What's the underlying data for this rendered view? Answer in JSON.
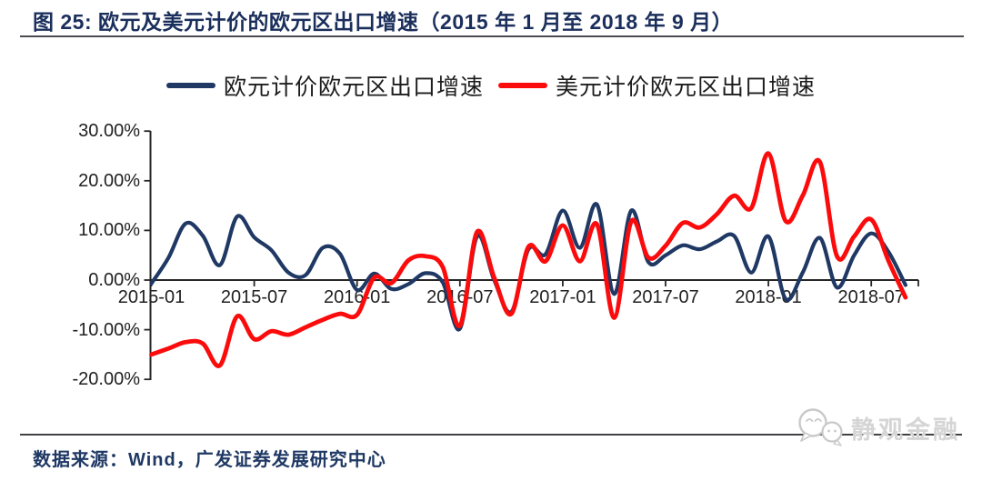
{
  "title": "图 25:  欧元及美元计价的欧元区出口增速（2015 年 1 月至 2018 年 9 月）",
  "source": "数据来源：Wind，广发证券发展研究中心",
  "watermark": "静观金融",
  "colors": {
    "eur_line": "#1F3864",
    "usd_line": "#FB0B0B",
    "title_text": "#1B2F5C",
    "axis": "#262626",
    "tick_label": "#212121",
    "divider": "#4C4C52",
    "watermark_gray": "#D5D5D5"
  },
  "legend": [
    {
      "label": "欧元计价欧元区出口增速",
      "color": "#1F3864"
    },
    {
      "label": "美元计价欧元区出口增速",
      "color": "#FB0B0B"
    }
  ],
  "chart_data": {
    "type": "line",
    "smoothing": true,
    "grid": false,
    "legend_position": "top",
    "ylim": [
      -20,
      30
    ],
    "y_tick_values": [
      30,
      20,
      10,
      0,
      -10,
      -20
    ],
    "y_tick_labels": [
      "30.00%",
      "20.00%",
      "10.00%",
      "0.00%",
      "-10.00%",
      "-20.00%"
    ],
    "x_tick_labels": [
      "2015-01",
      "2015-07",
      "2016-01",
      "2016-07",
      "2017-01",
      "2017-07",
      "2018-01",
      "2018-07"
    ],
    "x": [
      "2015-01",
      "2015-02",
      "2015-03",
      "2015-04",
      "2015-05",
      "2015-06",
      "2015-07",
      "2015-08",
      "2015-09",
      "2015-10",
      "2015-11",
      "2015-12",
      "2016-01",
      "2016-02",
      "2016-03",
      "2016-04",
      "2016-05",
      "2016-06",
      "2016-07",
      "2016-08",
      "2016-09",
      "2016-10",
      "2016-11",
      "2016-12",
      "2017-01",
      "2017-02",
      "2017-03",
      "2017-04",
      "2017-05",
      "2017-06",
      "2017-07",
      "2017-08",
      "2017-09",
      "2017-10",
      "2017-11",
      "2017-12",
      "2018-01",
      "2018-02",
      "2018-03",
      "2018-04",
      "2018-05",
      "2018-06",
      "2018-07",
      "2018-08",
      "2018-09"
    ],
    "series": [
      {
        "name": "欧元计价欧元区出口增速",
        "color": "#1F3864",
        "values": [
          -0.7,
          4.5,
          11.4,
          8.9,
          3.0,
          12.8,
          8.6,
          6.0,
          1.5,
          1.0,
          6.5,
          5.3,
          -2.0,
          1.3,
          -1.8,
          -0.8,
          1.4,
          -0.5,
          -9.8,
          8.8,
          0.0,
          -6.4,
          6.2,
          5.2,
          14.0,
          6.5,
          15.2,
          -2.8,
          14.0,
          3.6,
          5.0,
          7.0,
          6.2,
          7.8,
          8.9,
          1.5,
          8.8,
          -3.8,
          1.5,
          8.5,
          -1.5,
          5.0,
          9.4,
          5.7,
          -1.0
        ]
      },
      {
        "name": "美元计价欧元区出口增速",
        "color": "#FB0B0B",
        "values": [
          -15.0,
          -13.8,
          -12.5,
          -12.8,
          -17.2,
          -7.3,
          -11.9,
          -10.3,
          -11.0,
          -9.5,
          -8.0,
          -6.8,
          -7.0,
          0.5,
          -0.6,
          4.0,
          4.8,
          2.6,
          -9.2,
          9.7,
          0.5,
          -6.8,
          6.7,
          3.8,
          11.0,
          3.8,
          11.2,
          -7.6,
          11.8,
          4.5,
          6.9,
          11.5,
          10.6,
          13.3,
          17.0,
          14.5,
          25.5,
          11.9,
          17.0,
          23.8,
          4.8,
          8.8,
          12.2,
          3.9,
          -3.5
        ]
      }
    ]
  }
}
